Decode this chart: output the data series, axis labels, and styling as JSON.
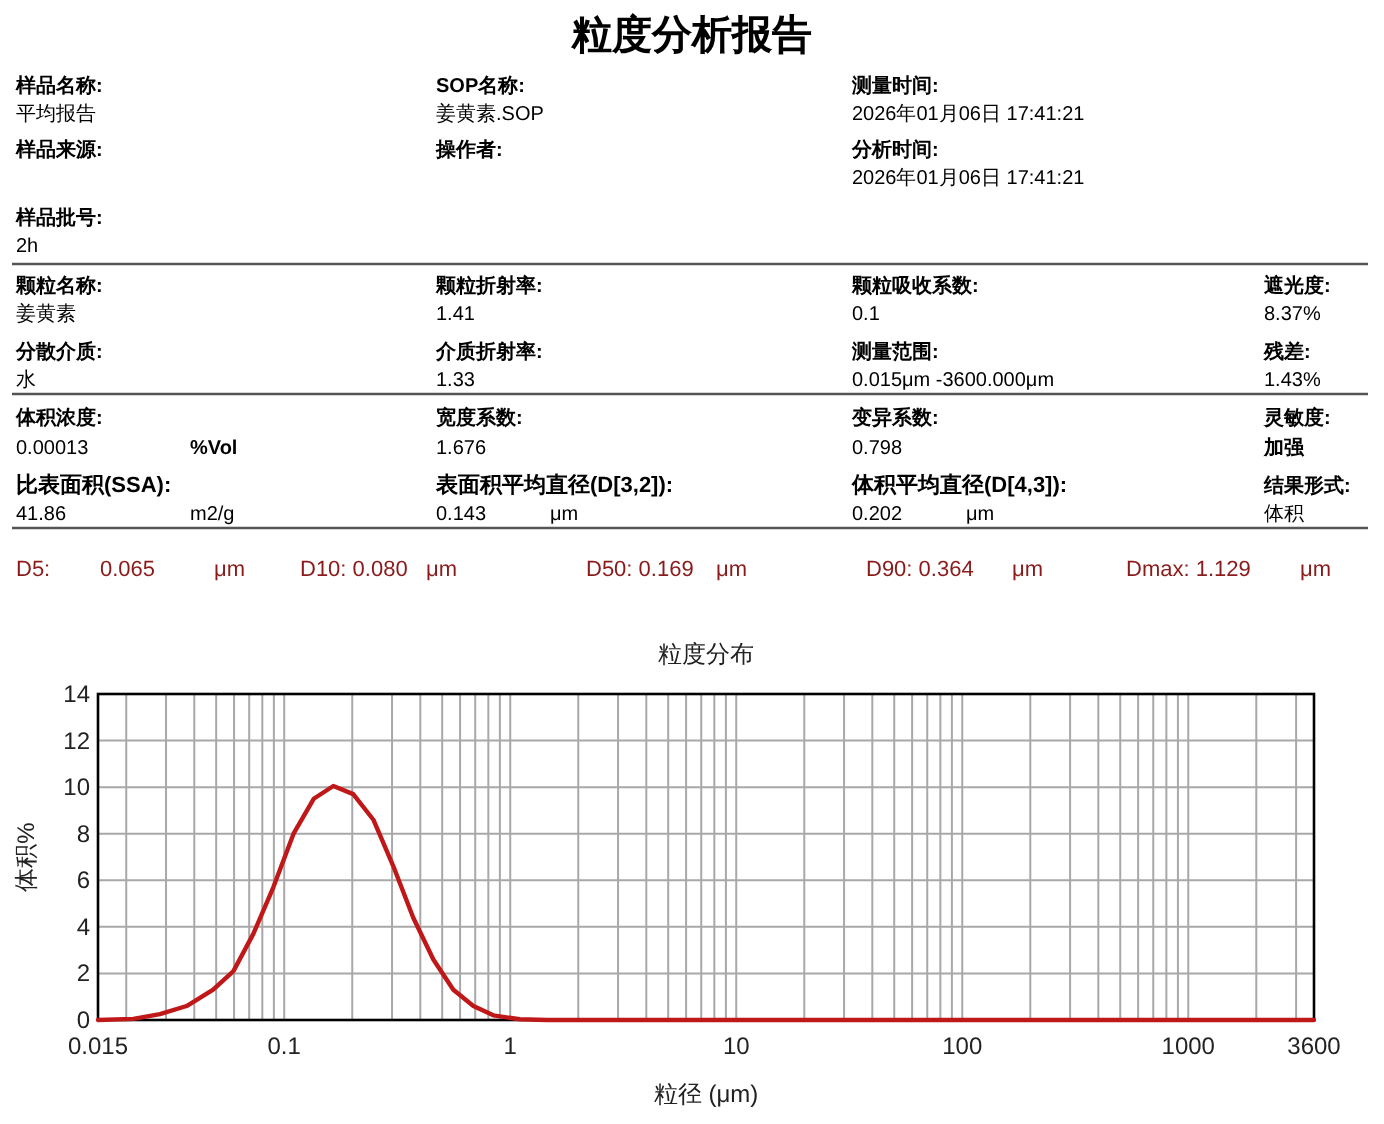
{
  "chart_data": {
    "type": "line",
    "title": "粒度分布",
    "xlabel": "粒径 (μm)",
    "ylabel": "体积%",
    "x": [
      0.015,
      0.0215,
      0.0282,
      0.037,
      0.0485,
      0.0596,
      0.073,
      0.0895,
      0.11,
      0.135,
      0.165,
      0.202,
      0.248,
      0.304,
      0.372,
      0.457,
      0.56,
      0.687,
      0.842,
      1.1,
      1.45,
      10,
      100,
      1000,
      3600
    ],
    "series": [
      {
        "color": "#c01818",
        "values": [
          0,
          0.05,
          0.25,
          0.6,
          1.3,
          2.1,
          3.7,
          5.7,
          8.0,
          9.5,
          10.05,
          9.7,
          8.6,
          6.6,
          4.4,
          2.6,
          1.3,
          0.6,
          0.2,
          0.03,
          0,
          0,
          0,
          0,
          0
        ]
      }
    ],
    "xlim": [
      0.015,
      3600
    ],
    "ylim": [
      0,
      14
    ],
    "log": "x",
    "grid": true,
    "xticks": [
      {
        "value": 0.015,
        "label": "0.015"
      },
      {
        "value": 0.02,
        "label": null
      },
      {
        "value": 0.03,
        "label": null
      },
      {
        "value": 0.04,
        "label": null
      },
      {
        "value": 0.05,
        "label": null
      },
      {
        "value": 0.06,
        "label": null
      },
      {
        "value": 0.07,
        "label": null
      },
      {
        "value": 0.08,
        "label": null
      },
      {
        "value": 0.09,
        "label": null
      },
      {
        "value": 0.1,
        "label": "0.1"
      },
      {
        "value": 0.2,
        "label": null
      },
      {
        "value": 0.3,
        "label": null
      },
      {
        "value": 0.4,
        "label": null
      },
      {
        "value": 0.5,
        "label": null
      },
      {
        "value": 0.6,
        "label": null
      },
      {
        "value": 0.7,
        "label": null
      },
      {
        "value": 0.8,
        "label": null
      },
      {
        "value": 0.9,
        "label": null
      },
      1,
      {
        "value": 2,
        "label": null
      },
      {
        "value": 3,
        "label": null
      },
      {
        "value": 4,
        "label": null
      },
      {
        "value": 5,
        "label": null
      },
      {
        "value": 6,
        "label": null
      },
      {
        "value": 7,
        "label": null
      },
      {
        "value": 8,
        "label": null
      },
      {
        "value": 9,
        "label": null
      },
      10,
      {
        "value": 20,
        "label": null
      },
      {
        "value": 30,
        "label": null
      },
      {
        "value": 40,
        "label": null
      },
      {
        "value": 50,
        "label": null
      },
      {
        "value": 60,
        "label": null
      },
      {
        "value": 70,
        "label": null
      },
      {
        "value": 80,
        "label": null
      },
      {
        "value": 90,
        "label": null
      },
      100,
      {
        "value": 200,
        "label": null
      },
      {
        "value": 300,
        "label": null
      },
      {
        "value": 400,
        "label": null
      },
      {
        "value": 500,
        "label": null
      },
      {
        "value": 600,
        "label": null
      },
      {
        "value": 700,
        "label": null
      },
      {
        "value": 800,
        "label": null
      },
      {
        "value": 900,
        "label": null
      },
      1000,
      {
        "value": 2000,
        "label": null
      },
      {
        "value": 3000,
        "label": null
      },
      3600
    ],
    "yticks": [
      0,
      2,
      4,
      6,
      8,
      10,
      12,
      14
    ],
    "annotations": [
      "粒度分析报告",
      "样品名称:",
      "平均报告",
      "SOP名称:",
      "姜黄素.SOP",
      "测量时间:",
      "2026年01月06日 17:41:21",
      "样品来源:",
      "操作者:",
      "分析时间:",
      "2026年01月06日 17:41:21",
      "样品批号:",
      "2h",
      "颗粒名称:",
      "姜黄素",
      "颗粒折射率:",
      "1.41",
      "颗粒吸收系数:",
      "0.1",
      "遮光度:",
      "8.37%",
      "分散介质:",
      "水",
      "介质折射率:",
      "1.33",
      "测量范围:",
      "0.015μm -3600.000μm",
      "残差:",
      "1.43%",
      "体积浓度:",
      "0.00013",
      "%Vol",
      "宽度系数:",
      "1.676",
      "变异系数:",
      "0.798",
      "灵敏度:",
      "加强",
      "比表面积(SSA):",
      "41.86",
      "m2/g",
      "表面积平均直径(D[3,2]):",
      "0.143",
      "μm",
      "体积平均直径(D[4,3]):",
      "0.202",
      "μm",
      "结果形式:",
      "体积",
      "D5:",
      "0.065",
      "μm",
      "D10: 0.080",
      "μm",
      "D50: 0.169",
      "μm",
      "D90: 0.364",
      "μm",
      "Dmax: 1.129",
      "μm"
    ]
  }
}
